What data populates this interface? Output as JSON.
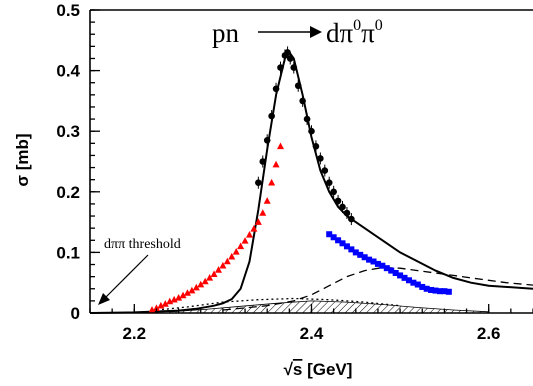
{
  "chart_data": {
    "type": "scatter",
    "title": "pn → dπ⁰π⁰",
    "reaction": {
      "initial": "pn",
      "final_base": "dπ",
      "sup1": "0",
      "mid": "π",
      "sup2": "0"
    },
    "xlabel": "√s [GeV]",
    "xlabel_parts": {
      "root": "√",
      "s": "s",
      "unit": " [GeV]"
    },
    "ylabel": "σ [mb]",
    "xlim": [
      2.15,
      2.65
    ],
    "ylim": [
      0,
      0.5
    ],
    "x_ticks": [
      "2.2",
      "2.4",
      "2.6"
    ],
    "x_tick_values": [
      2.2,
      2.4,
      2.6
    ],
    "y_ticks": [
      "0",
      "0.1",
      "0.2",
      "0.3",
      "0.4",
      "0.5"
    ],
    "y_tick_values": [
      0,
      0.1,
      0.2,
      0.3,
      0.4,
      0.5
    ],
    "annotation": {
      "text": "dππ threshold",
      "x": 2.156,
      "y": 0.0
    },
    "colors": {
      "red": "#ff0000",
      "blue": "#0000ff",
      "black": "#000000"
    },
    "series": [
      {
        "marker": "triangle",
        "color": "#ff0000",
        "x": [
          2.22,
          2.225,
          2.23,
          2.235,
          2.24,
          2.245,
          2.25,
          2.255,
          2.26,
          2.265,
          2.27,
          2.275,
          2.28,
          2.285,
          2.29,
          2.295,
          2.3,
          2.305,
          2.31,
          2.315,
          2.32,
          2.325,
          2.33,
          2.335,
          2.34,
          2.345,
          2.35,
          2.355,
          2.36,
          2.365
        ],
        "y": [
          0.005,
          0.008,
          0.012,
          0.015,
          0.019,
          0.022,
          0.025,
          0.029,
          0.033,
          0.037,
          0.042,
          0.047,
          0.052,
          0.058,
          0.064,
          0.071,
          0.078,
          0.085,
          0.093,
          0.101,
          0.11,
          0.119,
          0.129,
          0.139,
          0.15,
          0.165,
          0.185,
          0.215,
          0.245,
          0.275
        ]
      },
      {
        "marker": "circle",
        "color": "#000000",
        "x": [
          2.34,
          2.345,
          2.35,
          2.355,
          2.36,
          2.365,
          2.37,
          2.373,
          2.376,
          2.38,
          2.385,
          2.39,
          2.395,
          2.4,
          2.405,
          2.41,
          2.415,
          2.42,
          2.425,
          2.43,
          2.435,
          2.44,
          2.445
        ],
        "y": [
          0.215,
          0.25,
          0.285,
          0.325,
          0.37,
          0.405,
          0.425,
          0.43,
          0.42,
          0.405,
          0.375,
          0.35,
          0.32,
          0.3,
          0.275,
          0.255,
          0.235,
          0.215,
          0.2,
          0.185,
          0.175,
          0.165,
          0.155
        ]
      },
      {
        "marker": "square",
        "color": "#0000ff",
        "x": [
          2.42,
          2.425,
          2.43,
          2.435,
          2.44,
          2.445,
          2.45,
          2.455,
          2.46,
          2.465,
          2.47,
          2.475,
          2.48,
          2.485,
          2.49,
          2.495,
          2.5,
          2.505,
          2.51,
          2.515,
          2.52,
          2.525,
          2.53,
          2.535,
          2.54,
          2.545,
          2.55,
          2.555
        ],
        "y": [
          0.13,
          0.125,
          0.12,
          0.115,
          0.11,
          0.105,
          0.1,
          0.096,
          0.092,
          0.088,
          0.085,
          0.081,
          0.078,
          0.074,
          0.07,
          0.066,
          0.062,
          0.058,
          0.054,
          0.05,
          0.047,
          0.043,
          0.04,
          0.038,
          0.037,
          0.036,
          0.036,
          0.035
        ]
      },
      {
        "line": "solid",
        "color": "#000000",
        "x": [
          2.15,
          2.2,
          2.25,
          2.27,
          2.29,
          2.3,
          2.31,
          2.32,
          2.33,
          2.34,
          2.35,
          2.36,
          2.37,
          2.375,
          2.38,
          2.39,
          2.4,
          2.41,
          2.42,
          2.43,
          2.44,
          2.45,
          2.46,
          2.48,
          2.5,
          2.52,
          2.54,
          2.56,
          2.58,
          2.6,
          2.65
        ],
        "y": [
          0,
          0.001,
          0.004,
          0.007,
          0.012,
          0.016,
          0.023,
          0.04,
          0.085,
          0.17,
          0.27,
          0.36,
          0.42,
          0.43,
          0.42,
          0.36,
          0.29,
          0.235,
          0.2,
          0.175,
          0.16,
          0.15,
          0.14,
          0.12,
          0.1,
          0.085,
          0.07,
          0.058,
          0.05,
          0.045,
          0.04
        ]
      },
      {
        "line": "dashed",
        "color": "#000000",
        "x": [
          2.3,
          2.35,
          2.38,
          2.4,
          2.42,
          2.44,
          2.46,
          2.48,
          2.5,
          2.52,
          2.54,
          2.56,
          2.58,
          2.6,
          2.62,
          2.65
        ],
        "y": [
          0.005,
          0.012,
          0.02,
          0.03,
          0.045,
          0.06,
          0.07,
          0.075,
          0.074,
          0.07,
          0.066,
          0.062,
          0.058,
          0.054,
          0.05,
          0.046
        ]
      },
      {
        "line": "dotted",
        "color": "#000000",
        "x": [
          2.22,
          2.26,
          2.3,
          2.34,
          2.38,
          2.42,
          2.46,
          2.5
        ],
        "y": [
          0.004,
          0.01,
          0.018,
          0.022,
          0.024,
          0.022,
          0.018,
          0.012
        ]
      },
      {
        "band": "hatched",
        "color": "#000000",
        "x": [
          2.24,
          2.28,
          2.32,
          2.36,
          2.4,
          2.44,
          2.48,
          2.52,
          2.56,
          2.6
        ],
        "y": [
          0.002,
          0.006,
          0.011,
          0.016,
          0.02,
          0.018,
          0.014,
          0.009,
          0.005,
          0.002
        ]
      }
    ]
  }
}
